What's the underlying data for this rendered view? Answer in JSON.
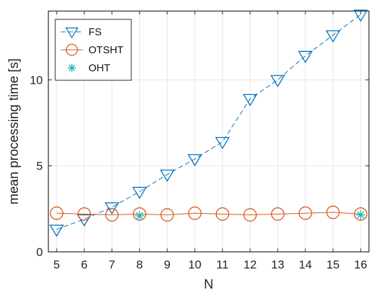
{
  "chart_data": {
    "type": "line",
    "xlabel": "N",
    "ylabel": "mean processing time [s]",
    "xlim": [
      5,
      16
    ],
    "ylim": [
      0,
      14
    ],
    "xticks": [
      5,
      6,
      7,
      8,
      9,
      10,
      11,
      12,
      13,
      14,
      15,
      16
    ],
    "yticks": [
      0,
      5,
      10
    ],
    "grid": true,
    "legend_position": "top-left",
    "series": [
      {
        "name": "FS",
        "color": "#0072BD",
        "marker": "triangle-down",
        "line_style": "dashed",
        "x": [
          5,
          6,
          7,
          8,
          9,
          10,
          11,
          12,
          13,
          14,
          15,
          16
        ],
        "y": [
          1.3,
          1.9,
          2.6,
          3.5,
          4.5,
          5.4,
          6.4,
          8.9,
          10.0,
          11.4,
          12.6,
          13.8
        ]
      },
      {
        "name": "OTSHT",
        "color": "#D95319",
        "marker": "circle",
        "line_style": "solid",
        "x": [
          5,
          6,
          7,
          8,
          9,
          10,
          11,
          12,
          13,
          14,
          15,
          16
        ],
        "y": [
          2.25,
          2.2,
          2.15,
          2.2,
          2.15,
          2.25,
          2.2,
          2.15,
          2.2,
          2.25,
          2.3,
          2.2
        ]
      },
      {
        "name": "OHT",
        "color": "#1FB5B5",
        "marker": "asterisk",
        "line_style": "none",
        "x": [
          8,
          16
        ],
        "y": [
          2.1,
          2.15
        ]
      }
    ]
  }
}
